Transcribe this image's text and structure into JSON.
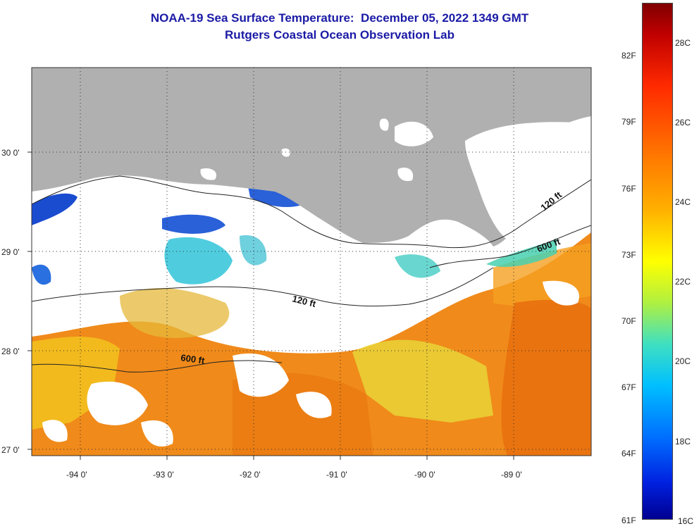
{
  "title_line1": "NOAA-19 Sea Surface Temperature:  December 05, 2022 1349 GMT",
  "title_line2": "Rutgers Coastal Ocean Observation Lab",
  "colors": {
    "title": "#1a1aa6",
    "land": "#b0b0b0",
    "cloud": "#ffffff",
    "warm_water": "#f08a1a",
    "mid_water": "#f0c818",
    "cool_water": "#30c8e0",
    "cold_water": "#1040d0"
  },
  "map": {
    "lat_labels": [
      "30 0'",
      "29 0'",
      "28 0'",
      "27 0'"
    ],
    "lon_labels": [
      "-94 0'",
      "-93 0'",
      "-92 0'",
      "-91 0'",
      "-90 0'",
      "-89 0'"
    ],
    "contours": [
      {
        "name": "shelf_120ft",
        "label": "120 ft"
      },
      {
        "name": "slope_600ft",
        "label": "600 ft"
      }
    ],
    "contour_labels": [
      "120 ft",
      "600 ft",
      "120 ft",
      "600 ft"
    ]
  },
  "colorbar": {
    "fahrenheit_labels": [
      "82F",
      "79F",
      "76F",
      "73F",
      "70F",
      "67F",
      "64F",
      "61F"
    ],
    "celsius_labels": [
      "28C",
      "26C",
      "24C",
      "22C",
      "20C",
      "18C",
      "16C"
    ],
    "range_c": [
      16,
      29
    ]
  }
}
